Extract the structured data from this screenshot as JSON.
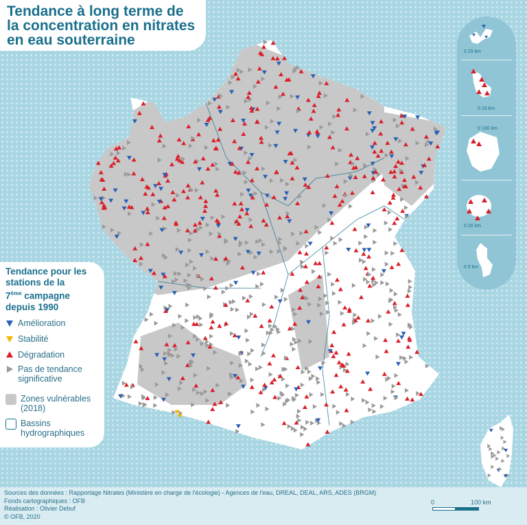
{
  "title": {
    "line1": "Tendance à long terme de",
    "line2": "la concentration en nitrates",
    "line3": "en eau souterraine"
  },
  "legend": {
    "heading_line1": "Tendance pour les",
    "heading_line2": "stations de la",
    "heading_sup_base": "7",
    "heading_sup": "ème",
    "heading_line3_rest": " campagne",
    "heading_line4": "depuis 1990",
    "items": [
      {
        "label": "Amélioration",
        "color": "#2b5fb3",
        "symbol": "triangle-down-icon"
      },
      {
        "label": "Stabilité",
        "color": "#f2b800",
        "symbol": "triangle-down-icon"
      },
      {
        "label": "Dégradation",
        "color": "#d9202a",
        "symbol": "triangle-up-icon"
      },
      {
        "label_line1": "Pas de tendance",
        "label_line2": "significative",
        "color": "#9a9a9a",
        "symbol": "triangle-right-icon"
      }
    ],
    "zones": {
      "label_line1": "Zones vulnérables",
      "label_line2": "(2018)",
      "color": "#c8c8c8"
    },
    "bassins": {
      "label_line1": "Bassins",
      "label_line2": "hydrographiques",
      "color": "#1a6f8c"
    }
  },
  "overseas_scales": [
    {
      "region": "Guadeloupe",
      "label": "0    20 km"
    },
    {
      "region": "Martinique",
      "label": "0    10 km"
    },
    {
      "region": "Guyane",
      "label": "0    100 km"
    },
    {
      "region": "La Réunion",
      "label": "0    20 km"
    },
    {
      "region": "Mayotte",
      "label": "0    5 km"
    }
  ],
  "main_scale": {
    "start": "0",
    "end": "100 km"
  },
  "footer": {
    "sources": "Sources des données : Rapportage Nitrates (Ministère en charge de l'écologie) - Agences de l'eau, DREAL, DEAL, ARS, ADES (BRGM)",
    "fonds": "Fonds cartographiques : OFB",
    "realisation": "Réalisation : Olivier Debuf",
    "copyright": "© OFB, 2020"
  },
  "colors": {
    "sea": "#a9d6e3",
    "land": "#ffffff",
    "vulnerable_zone": "#c8c8c8",
    "title": "#1a6f8c",
    "improvement": "#2b5fb3",
    "stability": "#f2b800",
    "degradation": "#d9202a",
    "no_trend": "#9a9a9a"
  }
}
